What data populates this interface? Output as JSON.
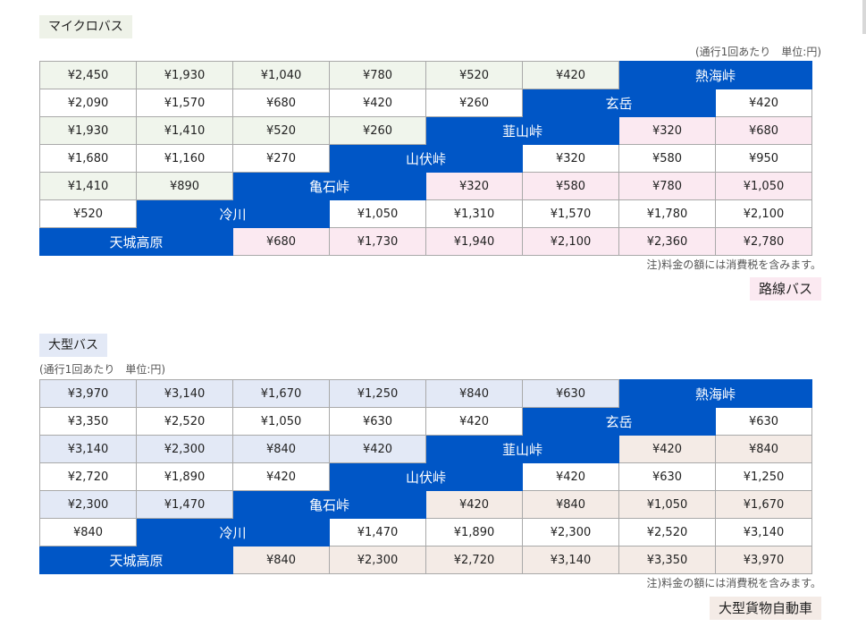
{
  "micro": {
    "label": "マイクロバス",
    "unit_note": "(通行1回あたり　単位:円)",
    "tax_note": "注)料金の額には消費税を含みます。",
    "next_label": "路線バス",
    "rows": [
      [
        "¥2,450",
        "¥1,930",
        "¥1,040",
        "¥780",
        "¥520",
        "¥420",
        "熱海峠"
      ],
      [
        "¥2,090",
        "¥1,570",
        "¥680",
        "¥420",
        "¥260",
        "玄岳",
        "¥420"
      ],
      [
        "¥1,930",
        "¥1,410",
        "¥520",
        "¥260",
        "韮山峠",
        "¥320",
        "¥680"
      ],
      [
        "¥1,680",
        "¥1,160",
        "¥270",
        "山伏峠",
        "¥320",
        "¥580",
        "¥950"
      ],
      [
        "¥1,410",
        "¥890",
        "亀石峠",
        "¥320",
        "¥580",
        "¥780",
        "¥1,050"
      ],
      [
        "¥520",
        "冷川",
        "¥1,050",
        "¥1,310",
        "¥1,570",
        "¥1,780",
        "¥2,100"
      ],
      [
        "天城高原",
        "¥680",
        "¥1,730",
        "¥1,940",
        "¥2,100",
        "¥2,360",
        "¥2,780"
      ]
    ]
  },
  "large": {
    "label": "大型バス",
    "unit_note": "(通行1回あたり　単位:円)",
    "tax_note": "注)料金の額には消費税を含みます。",
    "next_label": "大型貨物自動車",
    "rows": [
      [
        "¥3,970",
        "¥3,140",
        "¥1,670",
        "¥1,250",
        "¥840",
        "¥630",
        "熱海峠"
      ],
      [
        "¥3,350",
        "¥2,520",
        "¥1,050",
        "¥630",
        "¥420",
        "玄岳",
        "¥630"
      ],
      [
        "¥3,140",
        "¥2,300",
        "¥840",
        "¥420",
        "韮山峠",
        "¥420",
        "¥840"
      ],
      [
        "¥2,720",
        "¥1,890",
        "¥420",
        "山伏峠",
        "¥420",
        "¥630",
        "¥1,250"
      ],
      [
        "¥2,300",
        "¥1,470",
        "亀石峠",
        "¥420",
        "¥840",
        "¥1,050",
        "¥1,670"
      ],
      [
        "¥840",
        "冷川",
        "¥1,470",
        "¥1,890",
        "¥2,300",
        "¥2,520",
        "¥3,140"
      ],
      [
        "天城高原",
        "¥840",
        "¥2,300",
        "¥2,720",
        "¥3,140",
        "¥3,350",
        "¥3,970"
      ]
    ]
  },
  "colors": {
    "stop_header": "#0056c6",
    "micro_upper_tint": "#f0f5ec",
    "micro_lower_tint": "#fbe9f1",
    "large_upper_tint": "#e3e9f6",
    "large_lower_tint": "#f4ebe6"
  }
}
